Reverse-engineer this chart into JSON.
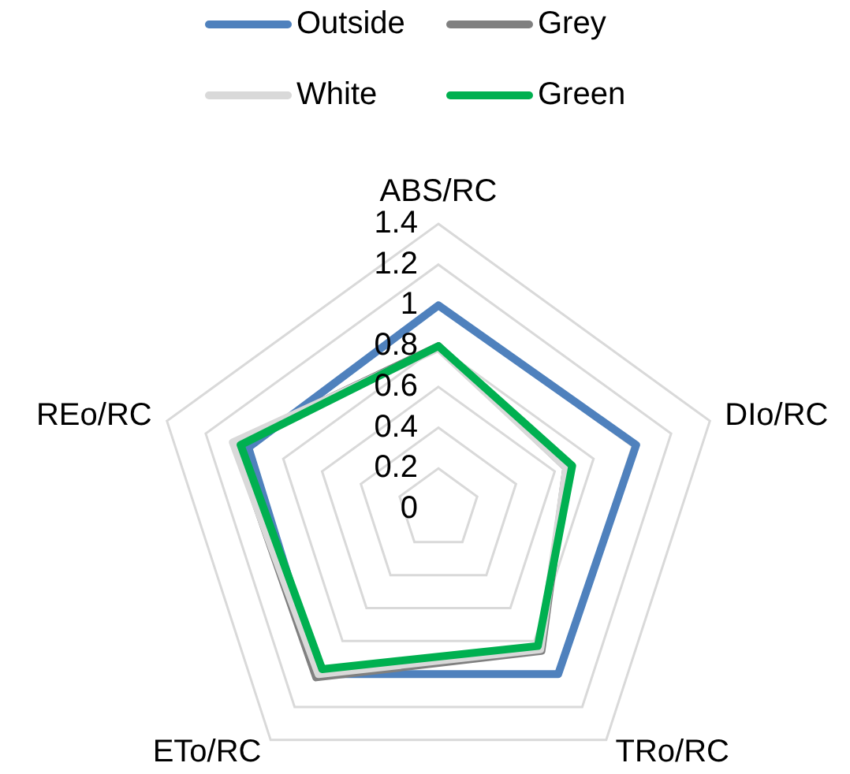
{
  "chart_data": {
    "type": "radar",
    "categories": [
      "ABS/RC",
      "DIo/RC",
      "TRo/RC",
      "ETo/RC",
      "REo/RC"
    ],
    "series": [
      {
        "name": "Outside",
        "color": "#4f81bd",
        "values": [
          1.0,
          1.02,
          1.0,
          1.0,
          0.98
        ]
      },
      {
        "name": "Grey",
        "color": "#808080",
        "values": [
          0.8,
          0.66,
          0.86,
          1.02,
          1.05
        ]
      },
      {
        "name": "White",
        "color": "#d9d9d9",
        "values": [
          0.79,
          0.66,
          0.85,
          1.0,
          1.06
        ]
      },
      {
        "name": "Green",
        "color": "#00b050",
        "values": [
          0.8,
          0.69,
          0.83,
          0.97,
          1.02
        ]
      }
    ],
    "ylim": [
      0,
      1.4
    ],
    "yticks": [
      0,
      0.2,
      0.4,
      0.6,
      0.8,
      1,
      1.2,
      1.4
    ],
    "grid": true,
    "legend": "top",
    "marker": "none",
    "line_style": "solid"
  }
}
